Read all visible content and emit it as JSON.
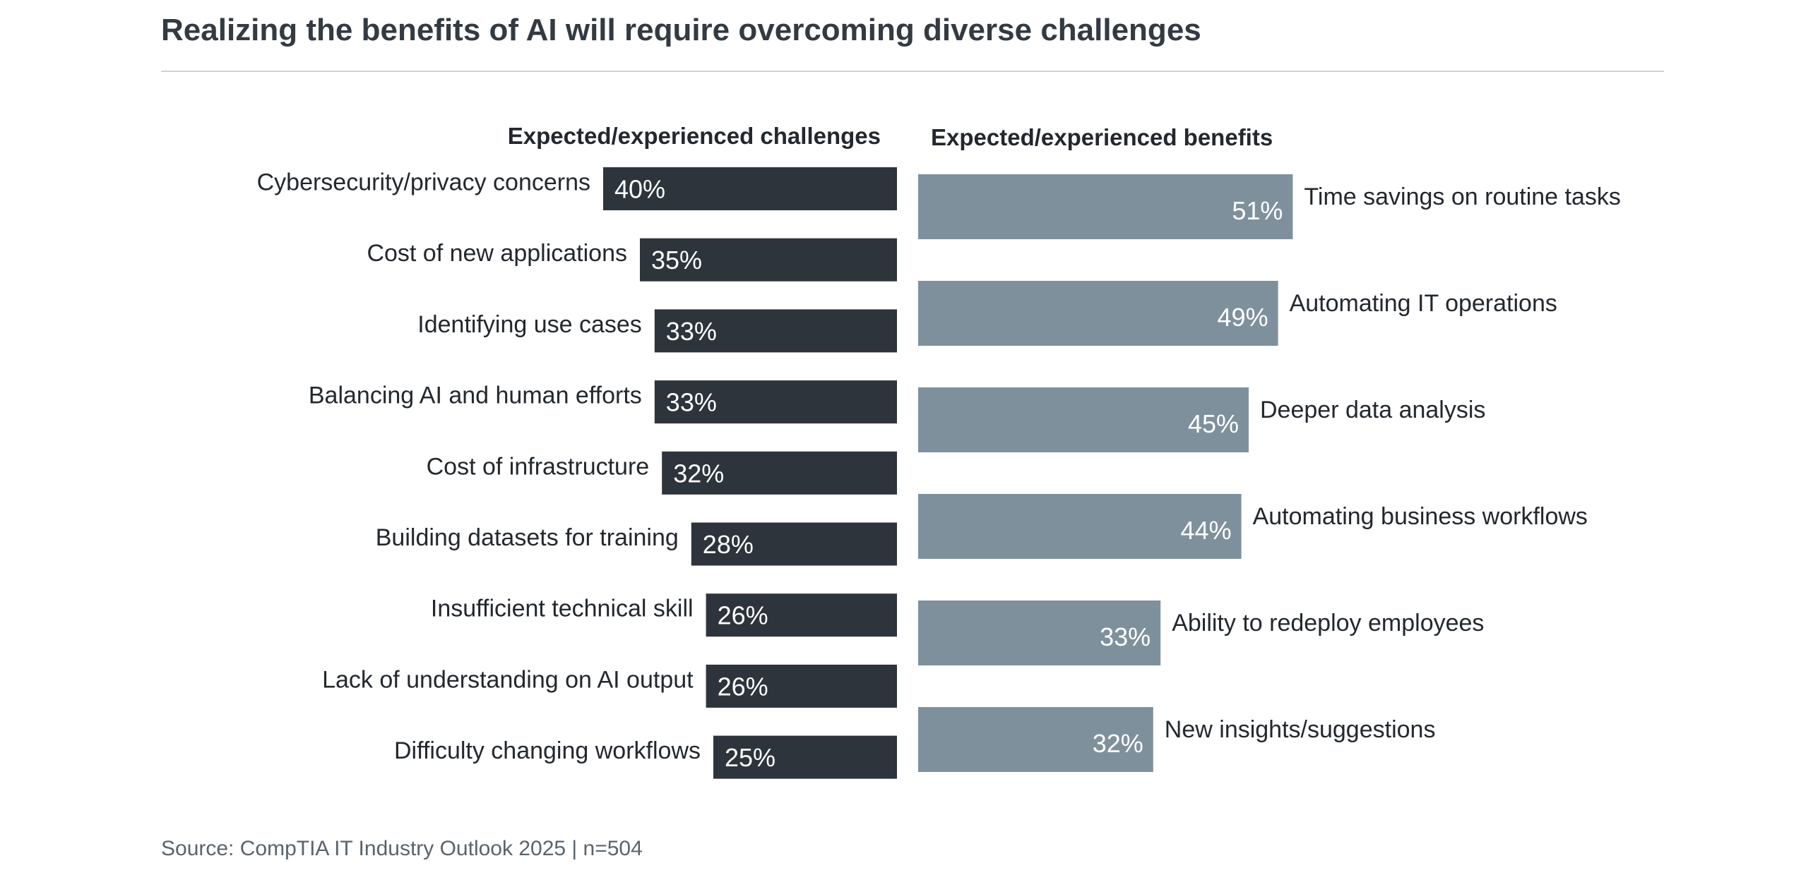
{
  "title": "Realizing the benefits of AI will require overcoming diverse challenges",
  "source": "Source: CompTIA IT Industry Outlook 2025 | n=504",
  "chart_data": [
    {
      "type": "bar",
      "orientation": "horizontal",
      "direction": "right-to-left",
      "title": "Expected/experienced challenges",
      "categories": [
        "Cybersecurity/privacy concerns",
        "Cost of new applications",
        "Identifying use cases",
        "Balancing AI and human efforts",
        "Cost of infrastructure",
        "Building datasets for training",
        "Insufficient technical skill",
        "Lack of understanding on AI output",
        "Difficulty changing workflows"
      ],
      "values": [
        40,
        35,
        33,
        33,
        32,
        28,
        26,
        26,
        25
      ],
      "value_labels": [
        "40%",
        "35%",
        "33%",
        "33%",
        "32%",
        "28%",
        "26%",
        "26%",
        "25%"
      ],
      "unit": "%",
      "color": "#2e343b",
      "xlim": [
        0,
        100
      ]
    },
    {
      "type": "bar",
      "orientation": "horizontal",
      "direction": "left-to-right",
      "title": "Expected/experienced benefits",
      "categories": [
        "Time savings on routine tasks",
        "Automating IT operations",
        "Deeper data analysis",
        "Automating business workflows",
        "Ability to redeploy employees",
        "New insights/suggestions"
      ],
      "values": [
        51,
        49,
        45,
        44,
        33,
        32
      ],
      "value_labels": [
        "51%",
        "49%",
        "45%",
        "44%",
        "33%",
        "32%"
      ],
      "unit": "%",
      "color": "#7f909d",
      "xlim": [
        0,
        100
      ]
    }
  ]
}
